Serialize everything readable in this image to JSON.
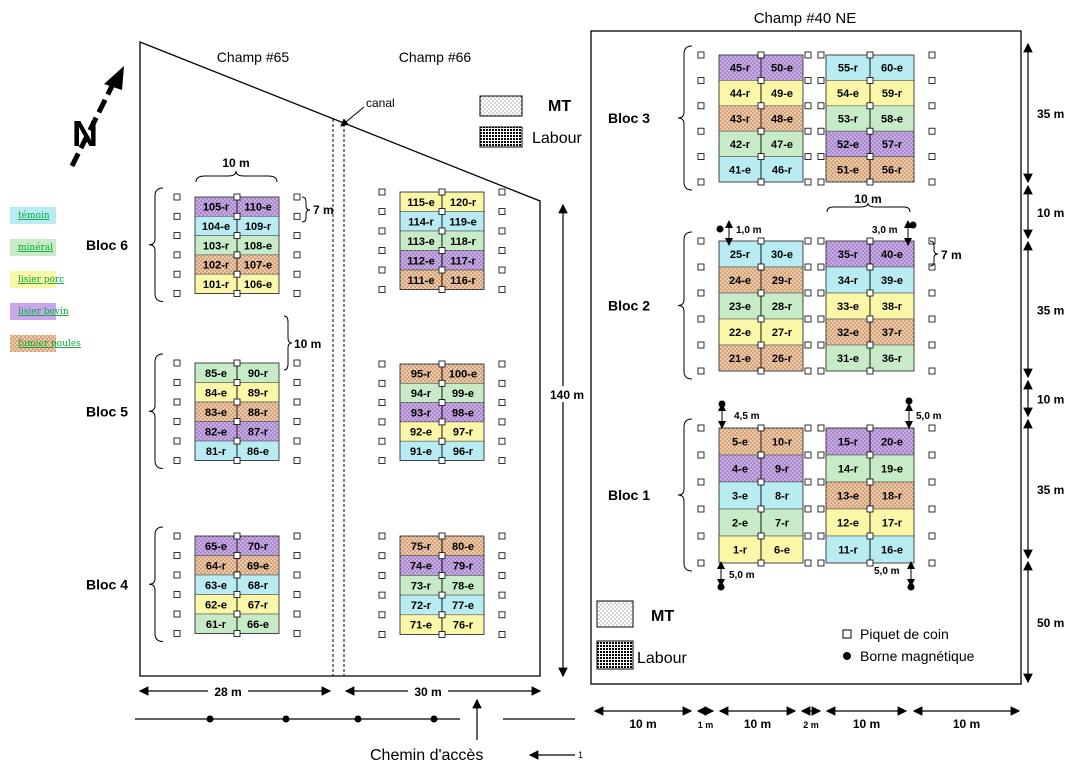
{
  "labels": {
    "champ40": "Champ #40 NE",
    "champ65": "Champ #65",
    "champ66": "Champ #66",
    "canal": "canal",
    "north": "N",
    "access": "Chemin d'accès",
    "page_num": "1",
    "m140": "140 m",
    "m10_top": "10 m",
    "m7_left": "7 m",
    "m10_gap": "10 m",
    "m28": "28 m",
    "m30": "30 m",
    "m10_bloc2": "10 m",
    "m7_right": "7 m",
    "m1_0": "1,0 m",
    "m3_0": "3,0 m",
    "m4_5": "4,5 m",
    "m5_0a": "5,0 m",
    "m5_0b": "5,0 m",
    "m5_0c": "5,0 m",
    "right_dims": [
      "35 m",
      "10 m",
      "35 m",
      "10 m",
      "35 m",
      "50 m"
    ],
    "bottom_dims": [
      "10 m",
      "1 m",
      "10 m",
      "2 m",
      "10 m",
      "10 m"
    ]
  },
  "legend": [
    {
      "label": "témoin",
      "color": "#b8ecf2",
      "key": "t"
    },
    {
      "label": "minéral",
      "color": "#c6ebc6",
      "key": "m"
    },
    {
      "label": "lisier porc",
      "color": "#fbf7a8",
      "key": "p"
    },
    {
      "label": "lisier bovin",
      "color": "#c8a8ea",
      "key": "b"
    },
    {
      "label": "fumier poules",
      "color": "#f3c6a0",
      "key": "f"
    }
  ],
  "legend_right": {
    "mt": "MT",
    "labour": "Labour",
    "piquet": "Piquet de coin",
    "borne": "Borne magnétique"
  },
  "legend_top": {
    "mt": "MT",
    "labour": "Labour"
  },
  "blocs": [
    {
      "name": "Bloc 6",
      "left": [
        [
          "105-r",
          "b"
        ],
        [
          "104-e",
          "t"
        ],
        [
          "103-r",
          "m"
        ],
        [
          "102-r",
          "f"
        ],
        [
          "101-r",
          "p"
        ]
      ],
      "right": [
        [
          "110-e",
          "b"
        ],
        [
          "109-r",
          "t"
        ],
        [
          "108-e",
          "m"
        ],
        [
          "107-e",
          "f"
        ],
        [
          "106-e",
          "p"
        ]
      ]
    },
    {
      "name": "",
      "left": [
        [
          "115-e",
          "p"
        ],
        [
          "114-r",
          "t"
        ],
        [
          "113-e",
          "m"
        ],
        [
          "112-e",
          "b"
        ],
        [
          "111-e",
          "f"
        ]
      ],
      "right": [
        [
          "120-r",
          "p"
        ],
        [
          "119-e",
          "t"
        ],
        [
          "118-r",
          "m"
        ],
        [
          "117-r",
          "b"
        ],
        [
          "116-r",
          "f"
        ]
      ]
    },
    {
      "name": "Bloc 5",
      "left": [
        [
          "85-e",
          "m"
        ],
        [
          "84-e",
          "p"
        ],
        [
          "83-e",
          "f"
        ],
        [
          "82-e",
          "b"
        ],
        [
          "81-r",
          "t"
        ]
      ],
      "right": [
        [
          "90-r",
          "m"
        ],
        [
          "89-r",
          "p"
        ],
        [
          "88-r",
          "f"
        ],
        [
          "87-r",
          "b"
        ],
        [
          "86-e",
          "t"
        ]
      ]
    },
    {
      "name": "",
      "left": [
        [
          "95-r",
          "f"
        ],
        [
          "94-r",
          "m"
        ],
        [
          "93-r",
          "b"
        ],
        [
          "92-e",
          "p"
        ],
        [
          "91-e",
          "t"
        ]
      ],
      "right": [
        [
          "100-e",
          "f"
        ],
        [
          "99-e",
          "m"
        ],
        [
          "98-e",
          "b"
        ],
        [
          "97-r",
          "p"
        ],
        [
          "96-r",
          "t"
        ]
      ]
    },
    {
      "name": "Bloc 4",
      "left": [
        [
          "65-e",
          "b"
        ],
        [
          "64-r",
          "f"
        ],
        [
          "63-e",
          "t"
        ],
        [
          "62-e",
          "p"
        ],
        [
          "61-r",
          "m"
        ]
      ],
      "right": [
        [
          "70-r",
          "b"
        ],
        [
          "69-e",
          "f"
        ],
        [
          "68-r",
          "t"
        ],
        [
          "67-r",
          "p"
        ],
        [
          "66-e",
          "m"
        ]
      ]
    },
    {
      "name": "",
      "left": [
        [
          "75-r",
          "f"
        ],
        [
          "74-e",
          "b"
        ],
        [
          "73-r",
          "m"
        ],
        [
          "72-r",
          "t"
        ],
        [
          "71-e",
          "p"
        ]
      ],
      "right": [
        [
          "80-e",
          "f"
        ],
        [
          "79-r",
          "b"
        ],
        [
          "78-e",
          "m"
        ],
        [
          "77-e",
          "t"
        ],
        [
          "76-r",
          "p"
        ]
      ]
    },
    {
      "name": "Bloc 3",
      "left": [
        [
          "45-r",
          "b"
        ],
        [
          "44-r",
          "p"
        ],
        [
          "43-r",
          "f"
        ],
        [
          "42-r",
          "m"
        ],
        [
          "41-e",
          "t"
        ]
      ],
      "right": [
        [
          "50-e",
          "b"
        ],
        [
          "49-e",
          "p"
        ],
        [
          "48-e",
          "f"
        ],
        [
          "47-e",
          "m"
        ],
        [
          "46-r",
          "t"
        ]
      ]
    },
    {
      "name": "",
      "left": [
        [
          "55-r",
          "t"
        ],
        [
          "54-e",
          "p"
        ],
        [
          "53-r",
          "m"
        ],
        [
          "52-e",
          "b"
        ],
        [
          "51-e",
          "f"
        ]
      ],
      "right": [
        [
          "60-e",
          "t"
        ],
        [
          "59-r",
          "p"
        ],
        [
          "58-e",
          "m"
        ],
        [
          "57-r",
          "b"
        ],
        [
          "56-r",
          "f"
        ]
      ]
    },
    {
      "name": "Bloc 2",
      "left": [
        [
          "25-r",
          "t"
        ],
        [
          "24-e",
          "f"
        ],
        [
          "23-e",
          "m"
        ],
        [
          "22-e",
          "p"
        ],
        [
          "21-e",
          "f"
        ]
      ],
      "right": [
        [
          "30-e",
          "t"
        ],
        [
          "29-r",
          "f"
        ],
        [
          "28-r",
          "m"
        ],
        [
          "27-r",
          "p"
        ],
        [
          "26-r",
          "f"
        ]
      ]
    },
    {
      "name": "",
      "left": [
        [
          "35-r",
          "b"
        ],
        [
          "34-r",
          "t"
        ],
        [
          "33-e",
          "p"
        ],
        [
          "32-e",
          "f"
        ],
        [
          "31-e",
          "m"
        ]
      ],
      "right": [
        [
          "40-e",
          "b"
        ],
        [
          "39-e",
          "t"
        ],
        [
          "38-r",
          "p"
        ],
        [
          "37-r",
          "f"
        ],
        [
          "36-r",
          "m"
        ]
      ]
    },
    {
      "name": "Bloc 1",
      "left": [
        [
          "5-e",
          "f"
        ],
        [
          "4-e",
          "b"
        ],
        [
          "3-e",
          "t"
        ],
        [
          "2-e",
          "m"
        ],
        [
          "1-r",
          "p"
        ]
      ],
      "right": [
        [
          "10-r",
          "f"
        ],
        [
          "9-r",
          "b"
        ],
        [
          "8-r",
          "t"
        ],
        [
          "7-r",
          "m"
        ],
        [
          "6-e",
          "p"
        ]
      ]
    },
    {
      "name": "",
      "left": [
        [
          "15-r",
          "b"
        ],
        [
          "14-r",
          "m"
        ],
        [
          "13-e",
          "f"
        ],
        [
          "12-e",
          "p"
        ],
        [
          "11-r",
          "t"
        ]
      ],
      "right": [
        [
          "20-e",
          "b"
        ],
        [
          "19-e",
          "m"
        ],
        [
          "18-r",
          "f"
        ],
        [
          "17-r",
          "p"
        ],
        [
          "16-e",
          "t"
        ]
      ]
    }
  ]
}
